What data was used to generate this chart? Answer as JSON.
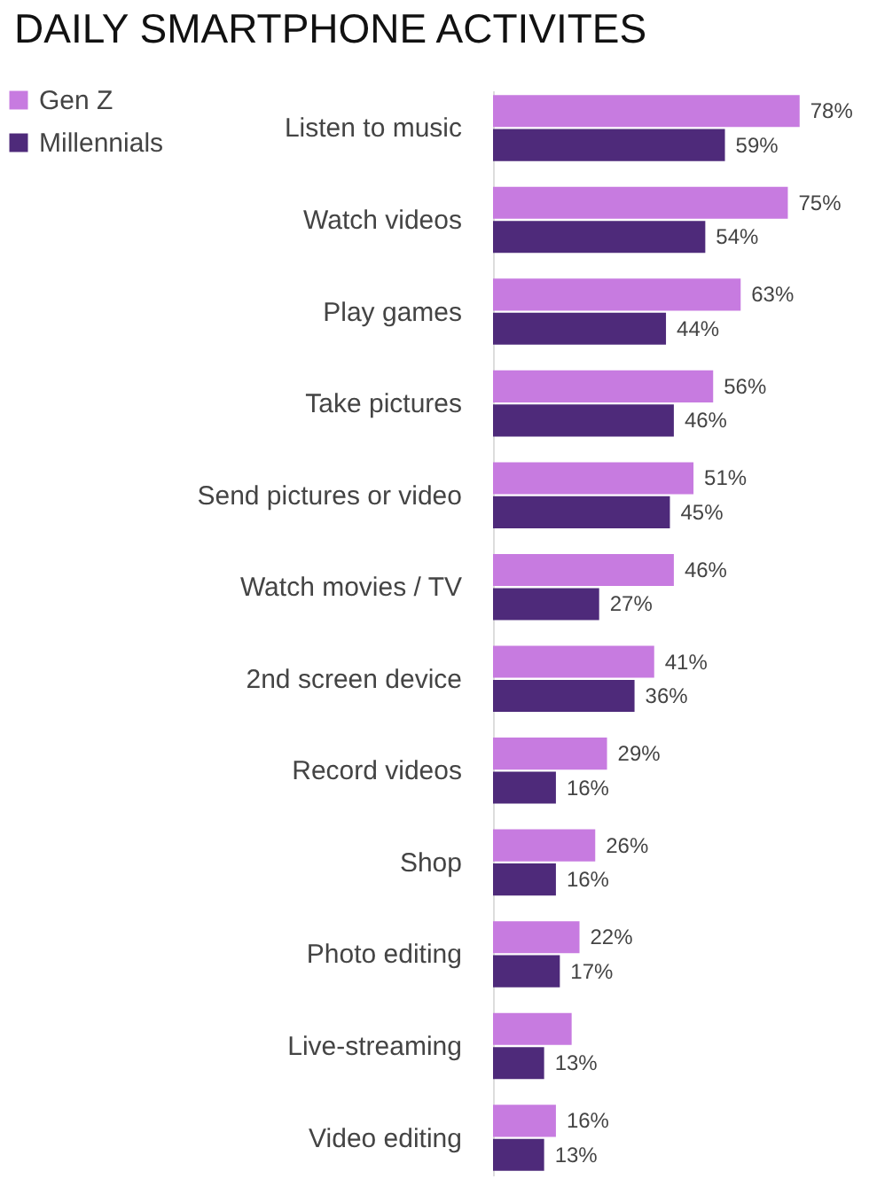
{
  "chart_data": {
    "type": "bar",
    "orientation": "horizontal",
    "title": "DAILY SMARTPHONE ACTIVITES",
    "categories": [
      "Listen to music",
      "Watch videos",
      "Play games",
      "Take pictures",
      "Send pictures or video",
      "Watch movies / TV",
      "2nd screen device",
      "Record videos",
      "Shop",
      "Photo editing",
      "Live-streaming",
      "Video editing"
    ],
    "series": [
      {
        "name": "Gen Z",
        "color": "#c77be0",
        "values": [
          78,
          75,
          63,
          56,
          51,
          46,
          41,
          29,
          26,
          22,
          20,
          16
        ],
        "value_labels": [
          "78%",
          "75%",
          "63%",
          "56%",
          "51%",
          "46%",
          "41%",
          "29%",
          "26%",
          "22%",
          null,
          "16%"
        ]
      },
      {
        "name": "Millennials",
        "color": "#4e2a7a",
        "values": [
          59,
          54,
          44,
          46,
          45,
          27,
          36,
          16,
          16,
          17,
          13,
          13
        ],
        "value_labels": [
          "59%",
          "54%",
          "44%",
          "46%",
          "45%",
          "27%",
          "36%",
          "16%",
          "16%",
          "17%",
          "13%",
          "13%"
        ]
      }
    ],
    "legend": "top left",
    "grid": false
  }
}
